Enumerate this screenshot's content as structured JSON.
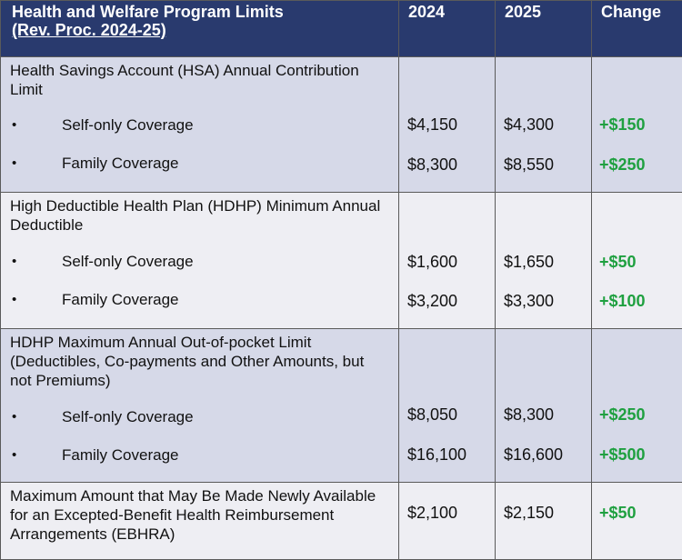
{
  "header": {
    "title_line1": "Health and Welfare Program Limits",
    "title_line2": "(Rev. Proc. 2024-25)",
    "col_2024": "2024",
    "col_2025": "2025",
    "col_change": "Change"
  },
  "sections": [
    {
      "title": "Health Savings Account (HSA) Annual Contribution Limit",
      "rows": [
        {
          "label": "Self-only Coverage",
          "v2024": "$4,150",
          "v2025": "$4,300",
          "change": "+$150"
        },
        {
          "label": "Family Coverage",
          "v2024": "$8,300",
          "v2025": "$8,550",
          "change": "+$250"
        }
      ]
    },
    {
      "title": "High Deductible Health Plan (HDHP) Minimum Annual Deductible",
      "rows": [
        {
          "label": "Self-only Coverage",
          "v2024": "$1,600",
          "v2025": "$1,650",
          "change": "+$50"
        },
        {
          "label": "Family Coverage",
          "v2024": "$3,200",
          "v2025": "$3,300",
          "change": "+$100"
        }
      ]
    },
    {
      "title": "HDHP Maximum Annual Out-of-pocket Limit (Deductibles, Co-payments and Other Amounts, but not Premiums)",
      "rows": [
        {
          "label": "Self-only Coverage",
          "v2024": "$8,050",
          "v2025": "$8,300",
          "change": "+$250"
        },
        {
          "label": "Family Coverage",
          "v2024": "$16,100",
          "v2025": "$16,600",
          "change": "+$500"
        }
      ]
    },
    {
      "title": "Maximum Amount that May Be Made Newly Available for an Excepted-Benefit Health Reimbursement Arrangements (EBHRA)",
      "v2024": "$2,100",
      "v2025": "$2,150",
      "change": "+$50"
    }
  ],
  "bullet_char": "•",
  "colors": {
    "header_bg": "#293a6e",
    "band_blue": "#d6d9e8",
    "band_gray": "#eeeef3",
    "change_green": "#1fa040"
  }
}
